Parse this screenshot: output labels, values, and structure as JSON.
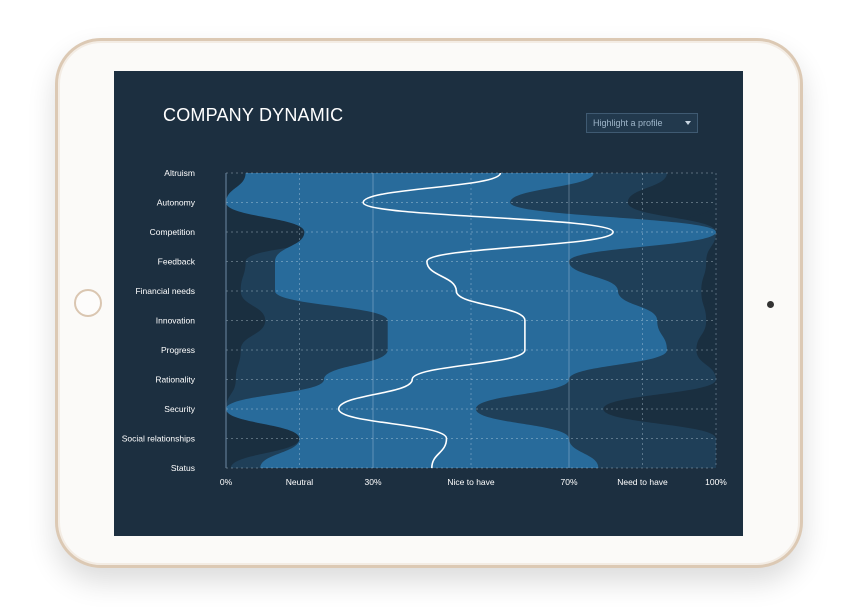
{
  "title": "COMPANY DYNAMIC",
  "dropdown": {
    "label": "Highlight a profile"
  },
  "colors": {
    "background": "#1c2f40",
    "outer_band": "#1a2f40",
    "mid_band": "#1f3f58",
    "inner_band": "#286b9b",
    "median_line": "#ffffff"
  },
  "chart_data": {
    "type": "area",
    "orientation": "horizontal",
    "categories": [
      "Altruism",
      "Autonomy",
      "Competition",
      "Feedback",
      "Financial needs",
      "Innovation",
      "Progress",
      "Rationality",
      "Security",
      "Social relationships",
      "Status"
    ],
    "x_ticks": [
      {
        "value": 0,
        "label": "0%"
      },
      {
        "value": 15,
        "label": "Neutral"
      },
      {
        "value": 30,
        "label": "30%"
      },
      {
        "value": 50,
        "label": "Nice to have"
      },
      {
        "value": 70,
        "label": "70%"
      },
      {
        "value": 85,
        "label": "Need to have"
      },
      {
        "value": 100,
        "label": "100%"
      }
    ],
    "xlim": [
      0,
      100
    ],
    "grid": true,
    "series": [
      {
        "left": [
          100,
          100,
          90,
          100,
          100,
          95,
          100,
          100,
          100,
          100,
          100
        ],
        "right": [
          100,
          100,
          100,
          100,
          100,
          100,
          100,
          100,
          100,
          100,
          100
        ]
      },
      {
        "left": [
          4,
          0,
          24,
          4,
          3,
          8,
          3,
          2,
          0,
          15,
          1
        ],
        "right": [
          90,
          82,
          100,
          98,
          97,
          98,
          96,
          100,
          77,
          100,
          100
        ]
      },
      {
        "left": [
          4,
          0,
          16,
          10,
          10,
          33,
          33,
          20,
          0,
          15,
          7
        ],
        "right": [
          75,
          58,
          100,
          70,
          80,
          88,
          90,
          70,
          51,
          70,
          76
        ]
      }
    ],
    "median": [
      56,
      28,
      79,
      41,
      47,
      61,
      61,
      38,
      23,
      45,
      42
    ]
  }
}
